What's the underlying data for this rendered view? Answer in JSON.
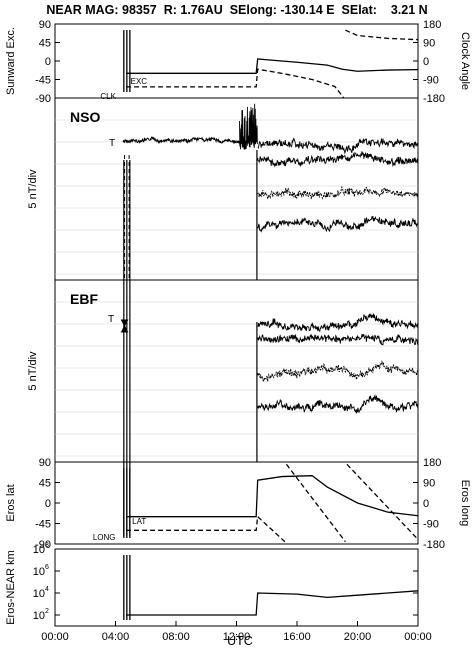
{
  "header": {
    "title": "NEAR MAG: 98357  R: 1.76AU  SElong: -130.14 E  SElat:    3.21 N"
  },
  "footer": {
    "xlabel": "UTC"
  },
  "chart_data": [
    {
      "type": "line",
      "panel": "sunward",
      "ylabel_left": "Sunward Exc.",
      "ylabel_right": "Clock Angle",
      "ylim": [
        -90,
        90
      ],
      "yticks": [
        90,
        45,
        0,
        -45,
        -90
      ],
      "ylim_right": [
        -180,
        180
      ],
      "yticks_right": [
        180,
        90,
        0,
        -90,
        -180
      ],
      "annotations": [
        "EXC",
        "CLK"
      ],
      "xlim": [
        0,
        24
      ],
      "series": [
        {
          "name": "EXC",
          "style": "solid",
          "x": [
            4.7,
            13.3,
            13.4,
            14,
            16,
            18,
            19,
            20,
            22,
            24
          ],
          "y": [
            -30,
            -30,
            5,
            3,
            -3,
            -10,
            -20,
            -25,
            -22,
            -21
          ]
        },
        {
          "name": "CLK",
          "style": "dashed",
          "x": [
            4.7,
            13.3,
            13.4,
            15,
            17,
            18.5,
            19.1,
            19.2,
            20,
            22,
            24
          ],
          "y": [
            -63,
            -63,
            -20,
            -30,
            -45,
            -62,
            -90,
            75,
            62,
            55,
            52
          ]
        }
      ]
    },
    {
      "type": "line",
      "panel": "NSO",
      "title": "NSO",
      "ylabel": "5 nT/div",
      "annotations": [
        "T"
      ],
      "xlim": [
        0,
        24
      ]
    },
    {
      "type": "line",
      "panel": "EBF",
      "title": "EBF",
      "ylabel": "5 nT/div",
      "annotations": [
        "T"
      ],
      "xlim": [
        0,
        24
      ]
    },
    {
      "type": "line",
      "panel": "eros",
      "ylabel_left": "Eros lat",
      "ylabel_right": "Eros long",
      "ylim": [
        -90,
        90
      ],
      "yticks": [
        90,
        45,
        0,
        -45,
        -90
      ],
      "ylim_right": [
        -180,
        180
      ],
      "yticks_right": [
        180,
        90,
        0,
        -90,
        -180
      ],
      "annotations": [
        "LAT",
        "LONG"
      ],
      "xlim": [
        0,
        24
      ],
      "series": [
        {
          "name": "LAT",
          "style": "solid",
          "x": [
            4.7,
            13.3,
            13.4,
            15,
            17,
            18,
            20,
            22,
            24
          ],
          "y": [
            -30,
            -30,
            50,
            58,
            60,
            35,
            0,
            -20,
            -28
          ]
        },
        {
          "name": "LONG",
          "style": "dashed",
          "x": [
            4.7,
            13.3,
            13.4,
            15.2,
            15.3,
            19.2,
            19.3,
            24
          ],
          "y": [
            -60,
            -60,
            -30,
            -85,
            85,
            -85,
            85,
            -80
          ]
        }
      ]
    },
    {
      "type": "line",
      "panel": "distance",
      "ylabel": "Eros-NEAR km",
      "yscale": "log",
      "ylim_exp": [
        1,
        8
      ],
      "yticks": [
        "10^8",
        "10^6",
        "10^4",
        "10^2"
      ],
      "xlim": [
        0,
        24
      ],
      "xticks": [
        "00:00",
        "04:00",
        "08:00",
        "12:00",
        "16:00",
        "20:00",
        "00:00"
      ],
      "series": [
        {
          "name": "distance",
          "style": "solid",
          "x": [
            4.7,
            13.3,
            13.4,
            16,
            18,
            20,
            22,
            24
          ],
          "y_exp": [
            2,
            2,
            4,
            3.9,
            3.6,
            3.8,
            4.0,
            4.2
          ]
        }
      ]
    }
  ]
}
